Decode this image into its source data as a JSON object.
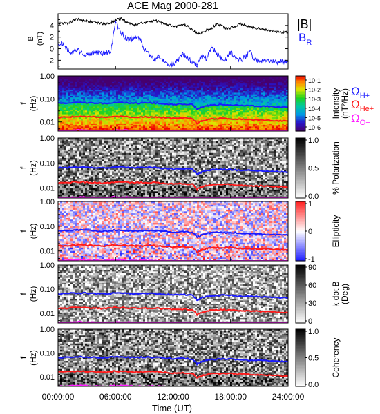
{
  "figure": {
    "title": "ACE Mag 2000-281",
    "xlabel": "Time (UT)",
    "x_ticks": [
      "00:00:00",
      "06:00:00",
      "12:00:00",
      "18:00:00",
      "24:00:00"
    ]
  },
  "chart_data": [
    {
      "type": "line",
      "panel": "magnetic-field",
      "ylabel": "B",
      "yunit": "(nT)",
      "ylim": [
        -3.5,
        6
      ],
      "y_ticks": [
        4,
        2,
        0,
        -2
      ],
      "x": [
        0,
        0.5,
        1,
        1.5,
        2,
        2.5,
        3,
        3.5,
        4,
        4.5,
        5,
        5.5,
        6,
        6.5,
        7,
        7.5,
        8,
        8.5,
        9,
        9.5,
        10,
        10.5,
        11,
        11.5,
        12,
        12.5,
        13,
        13.5,
        14,
        14.5,
        15,
        15.5,
        16,
        16.5,
        17,
        17.5,
        18,
        18.5,
        19,
        19.5,
        20,
        20.5,
        21,
        21.5,
        22,
        22.5,
        23,
        23.5,
        24
      ],
      "series": [
        {
          "name": "|B|",
          "color": "#000000",
          "values": [
            4.4,
            4.4,
            4.3,
            4.8,
            5.1,
            4.9,
            4.7,
            4.6,
            4.5,
            4.4,
            4.2,
            4.5,
            4.9,
            5.2,
            4.7,
            4.3,
            4.1,
            4.3,
            4.5,
            4.6,
            4.8,
            4.7,
            4.3,
            4.1,
            3.8,
            3.9,
            4.1,
            4.0,
            3.3,
            2.6,
            2.7,
            3.2,
            3.5,
            4.2,
            4.1,
            3.4,
            3.6,
            3.9,
            4.3,
            4.0,
            3.8,
            3.6,
            3.4,
            3.3,
            3.1,
            3.0,
            2.9,
            2.8,
            2.8
          ]
        },
        {
          "name": "B_R",
          "color": "#1a1aff",
          "values": [
            0.9,
            1.0,
            -0.3,
            -0.6,
            -0.2,
            -0.9,
            -1.1,
            -0.8,
            -0.7,
            -0.9,
            -0.7,
            -0.5,
            4.5,
            3.0,
            2.0,
            1.5,
            2.0,
            1.8,
            -0.1,
            -1.0,
            -2.0,
            -1.5,
            -2.2,
            -2.7,
            -2.6,
            -2.0,
            -1.0,
            -1.5,
            -2.5,
            -2.7,
            -1.2,
            -1.8,
            0.5,
            -0.8,
            -1.6,
            -1.9,
            -0.5,
            -1.8,
            -2.0,
            -1.5,
            -0.5,
            -1.8,
            -2.1,
            -1.8,
            -2.2,
            -2.0,
            -2.3,
            -2.1,
            -2.2
          ]
        }
      ]
    },
    {
      "type": "heatmap",
      "panel": "power-spectrum",
      "ylabel": "f",
      "yunit": "(Hz)",
      "ylim": [
        0.004,
        1.0
      ],
      "yscale": "log",
      "y_ticks": [
        "1.00",
        "0.10",
        "0.01"
      ],
      "colorbar": {
        "label": "Intensity",
        "unit": "(nT²/Hz)",
        "scale": "log",
        "ticks": [
          "10⁻¹",
          "10⁻²",
          "10⁻³",
          "10⁻⁴",
          "10⁻⁵",
          "10⁻⁶"
        ],
        "colormap": "rainbow"
      }
    },
    {
      "type": "heatmap",
      "panel": "polarization",
      "ylabel": "f",
      "yunit": "(Hz)",
      "ylim": [
        0.004,
        1.0
      ],
      "yscale": "log",
      "y_ticks": [
        "1.00",
        "0.10",
        "0.01"
      ],
      "colorbar": {
        "label": "% Polarization",
        "ticks": [
          "1.0",
          "0.5",
          "0.0"
        ],
        "colormap": "grayscale"
      }
    },
    {
      "type": "heatmap",
      "panel": "ellipticity",
      "ylabel": "f",
      "yunit": "(Hz)",
      "ylim": [
        0.004,
        1.0
      ],
      "yscale": "log",
      "y_ticks": [
        "1.00",
        "0.10",
        "0.01"
      ],
      "colorbar": {
        "label": "Ellipticity",
        "ticks": [
          "1",
          "0",
          "-1"
        ],
        "colormap": "blue-white-red"
      }
    },
    {
      "type": "heatmap",
      "panel": "wave-normal-angle",
      "ylabel": "f",
      "yunit": "(Hz)",
      "ylim": [
        0.004,
        1.0
      ],
      "yscale": "log",
      "y_ticks": [
        "1.00",
        "0.10",
        "0.01"
      ],
      "colorbar": {
        "label": "k dot B",
        "unit": "(Deg)",
        "ticks": [
          "90",
          "60",
          "30",
          "0"
        ],
        "colormap": "grayscale"
      }
    },
    {
      "type": "heatmap",
      "panel": "coherency",
      "ylabel": "f",
      "yunit": "(Hz)",
      "ylim": [
        0.004,
        1.0
      ],
      "yscale": "log",
      "y_ticks": [
        "1.00",
        "0.10",
        "0.01"
      ],
      "colorbar": {
        "label": "Coherency",
        "ticks": [
          "1.0",
          "0.5",
          "0.0"
        ],
        "colormap": "grayscale"
      }
    }
  ],
  "gyrofrequencies": {
    "x": [
      0,
      1,
      2,
      3,
      4,
      5,
      6,
      7,
      8,
      9,
      10,
      11,
      12,
      13,
      14,
      14.5,
      15,
      15.5,
      16,
      17,
      18,
      19,
      20,
      21,
      22,
      23,
      24
    ],
    "series": [
      {
        "name": "Ω_H+",
        "color": "#1a1aff",
        "values": [
          0.064,
          0.066,
          0.07,
          0.068,
          0.065,
          0.063,
          0.07,
          0.068,
          0.064,
          0.066,
          0.066,
          0.062,
          0.058,
          0.06,
          0.057,
          0.035,
          0.044,
          0.05,
          0.054,
          0.056,
          0.055,
          0.052,
          0.05,
          0.049,
          0.047,
          0.045,
          0.043
        ]
      },
      {
        "name": "Ω_He+",
        "color": "#ff1a1a",
        "values": [
          0.016,
          0.0165,
          0.0175,
          0.017,
          0.0163,
          0.0158,
          0.0175,
          0.017,
          0.016,
          0.0165,
          0.0165,
          0.0155,
          0.0145,
          0.015,
          0.0143,
          0.0088,
          0.011,
          0.0125,
          0.0135,
          0.014,
          0.0138,
          0.013,
          0.0125,
          0.0122,
          0.0118,
          0.0113,
          0.0108
        ]
      },
      {
        "name": "Ω_O+",
        "color": "#ff1aff",
        "values": [
          0.004,
          0.0041,
          0.0044,
          0.0043,
          0.0041,
          0.004,
          0.0044,
          0.0043,
          0.004,
          0.0041,
          0.0041,
          0.0039,
          0.0036,
          0.0038,
          0.0036,
          0.0022,
          0.0028,
          0.0031,
          0.0034,
          0.0035,
          0.0034,
          0.0033,
          0.0031,
          0.0031,
          0.003,
          0.0028,
          0.0027
        ]
      }
    ]
  }
}
